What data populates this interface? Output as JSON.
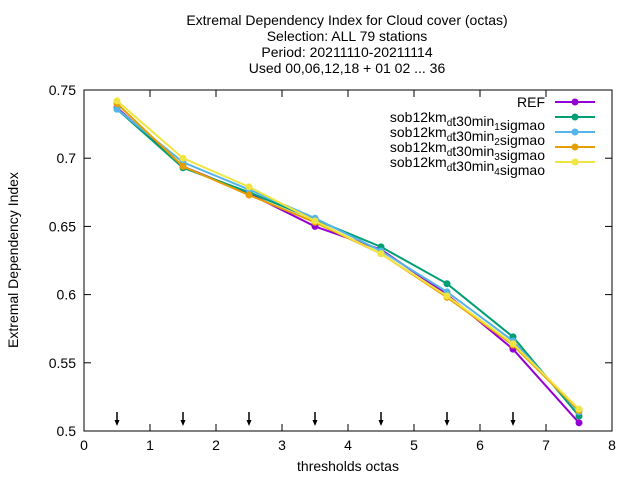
{
  "chart_data": {
    "type": "line",
    "title_lines": [
      "Extremal Dependency Index  for Cloud cover (octas)",
      "Selection: ALL     79 stations",
      "Period: 20211110-20211114",
      "Used 00,06,12,18 + 01 02 ... 36"
    ],
    "xlabel": "thresholds octas",
    "ylabel": "Extremal Dependency Index",
    "xlim": [
      0,
      8
    ],
    "ylim": [
      0.5,
      0.75
    ],
    "xticks": [
      "0",
      "1",
      "2",
      "3",
      "4",
      "5",
      "6",
      "7",
      "8"
    ],
    "yticks": [
      "0.5",
      "0.55",
      "0.6",
      "0.65",
      "0.7",
      "0.75"
    ],
    "legend_position": "top-right",
    "x": [
      0.5,
      1.5,
      2.5,
      3.5,
      4.5,
      5.5,
      6.5,
      7.5
    ],
    "arrow_markers_x": [
      0.5,
      1.5,
      2.5,
      3.5,
      4.5,
      5.5,
      6.5
    ],
    "series": [
      {
        "name": "REF",
        "legend_parts": [
          {
            "text": "REF",
            "sub": false
          }
        ],
        "color": "#9400d3",
        "values": [
          0.737,
          0.694,
          0.674,
          0.65,
          0.633,
          0.6,
          0.56,
          0.506
        ]
      },
      {
        "name": "sob12km_dt30min_1sigmao",
        "legend_parts": [
          {
            "text": "sob12km",
            "sub": false
          },
          {
            "text": "d",
            "sub": true
          },
          {
            "text": "t30min",
            "sub": false
          },
          {
            "text": "1",
            "sub": true
          },
          {
            "text": "sigmao",
            "sub": false
          }
        ],
        "color": "#009e73",
        "values": [
          0.736,
          0.693,
          0.675,
          0.655,
          0.635,
          0.608,
          0.569,
          0.511
        ]
      },
      {
        "name": "sob12km_dt30min_2sigmao",
        "legend_parts": [
          {
            "text": "sob12km",
            "sub": false
          },
          {
            "text": "d",
            "sub": true
          },
          {
            "text": "t30min",
            "sub": false
          },
          {
            "text": "2",
            "sub": true
          },
          {
            "text": "sigmao",
            "sub": false
          }
        ],
        "color": "#56b4e9",
        "values": [
          0.736,
          0.697,
          0.677,
          0.656,
          0.632,
          0.602,
          0.566,
          0.514
        ]
      },
      {
        "name": "sob12km_dt30min_3sigmao",
        "legend_parts": [
          {
            "text": "sob12km",
            "sub": false
          },
          {
            "text": "d",
            "sub": true
          },
          {
            "text": "t30min",
            "sub": false
          },
          {
            "text": "3",
            "sub": true
          },
          {
            "text": "sigmao",
            "sub": false
          }
        ],
        "color": "#e69f00",
        "values": [
          0.74,
          0.694,
          0.673,
          0.653,
          0.63,
          0.598,
          0.563,
          0.515
        ]
      },
      {
        "name": "sob12km_dt30min_4sigmao",
        "legend_parts": [
          {
            "text": "sob12km",
            "sub": false
          },
          {
            "text": "d",
            "sub": true
          },
          {
            "text": "t30min",
            "sub": false
          },
          {
            "text": "4",
            "sub": true
          },
          {
            "text": "sigmao",
            "sub": false
          }
        ],
        "color": "#f0e442",
        "values": [
          0.742,
          0.7,
          0.679,
          0.654,
          0.63,
          0.599,
          0.564,
          0.516
        ]
      }
    ]
  }
}
